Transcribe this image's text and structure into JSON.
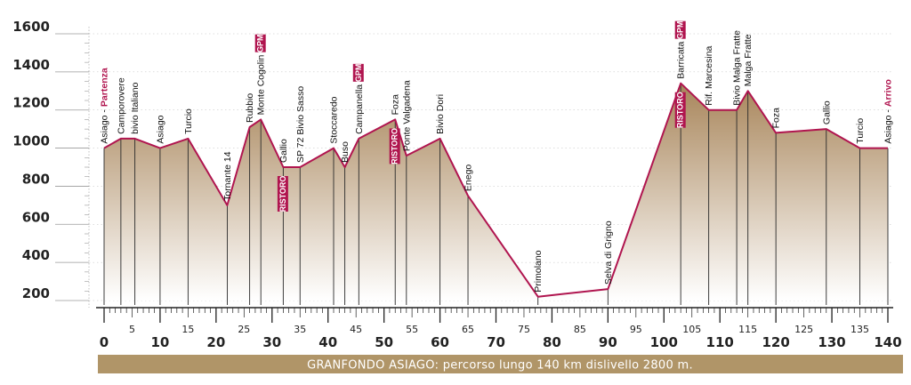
{
  "chart_data": {
    "type": "area",
    "title": "GRANFONDO ASIAGO: percorso lungo 140 km dislivello 2800 m.",
    "xlim": [
      0,
      140
    ],
    "ylim": [
      200,
      1600
    ],
    "x_ticks": [
      0,
      5,
      10,
      15,
      20,
      25,
      30,
      35,
      40,
      45,
      50,
      55,
      60,
      65,
      70,
      75,
      80,
      85,
      90,
      95,
      100,
      105,
      110,
      115,
      120,
      125,
      130,
      135,
      140
    ],
    "y_ticks": [
      200,
      400,
      600,
      800,
      1000,
      1200,
      1400,
      1600
    ],
    "profile": [
      {
        "x": 0,
        "y": 1000
      },
      {
        "x": 3,
        "y": 1050
      },
      {
        "x": 5.5,
        "y": 1050
      },
      {
        "x": 10,
        "y": 1000
      },
      {
        "x": 15,
        "y": 1050
      },
      {
        "x": 22,
        "y": 700
      },
      {
        "x": 26,
        "y": 1110
      },
      {
        "x": 28,
        "y": 1150
      },
      {
        "x": 32,
        "y": 900
      },
      {
        "x": 35,
        "y": 900
      },
      {
        "x": 41,
        "y": 1000
      },
      {
        "x": 43,
        "y": 900
      },
      {
        "x": 45.5,
        "y": 1050
      },
      {
        "x": 52,
        "y": 1150
      },
      {
        "x": 54,
        "y": 960
      },
      {
        "x": 60,
        "y": 1050
      },
      {
        "x": 65,
        "y": 750
      },
      {
        "x": 77.5,
        "y": 220
      },
      {
        "x": 90,
        "y": 260
      },
      {
        "x": 103,
        "y": 1340
      },
      {
        "x": 108,
        "y": 1200
      },
      {
        "x": 113,
        "y": 1200
      },
      {
        "x": 115,
        "y": 1300
      },
      {
        "x": 120,
        "y": 1080
      },
      {
        "x": 129,
        "y": 1100
      },
      {
        "x": 135,
        "y": 1000
      },
      {
        "x": 140,
        "y": 1000
      }
    ],
    "waypoints": [
      {
        "x": 0,
        "y": 1000,
        "label": "Asiago -",
        "red_suffix": "Partenza"
      },
      {
        "x": 3,
        "y": 1050,
        "label": "Camporovere"
      },
      {
        "x": 5.5,
        "y": 1050,
        "label": "bivio Italiano"
      },
      {
        "x": 10,
        "y": 1000,
        "label": "Asiago"
      },
      {
        "x": 15,
        "y": 1050,
        "label": "Turcio"
      },
      {
        "x": 22,
        "y": 700,
        "label": "Tornante 14"
      },
      {
        "x": 26,
        "y": 1110,
        "label": "Rubbio"
      },
      {
        "x": 28,
        "y": 1150,
        "label": "Monte Cogolin",
        "badge": "GPM"
      },
      {
        "x": 32,
        "y": 900,
        "label": "Gallio",
        "badge_below": "RISTORO"
      },
      {
        "x": 35,
        "y": 900,
        "label": "SP 72 Bivio Sasso"
      },
      {
        "x": 41,
        "y": 1000,
        "label": "Stoccaredo"
      },
      {
        "x": 43,
        "y": 900,
        "label": "Buso"
      },
      {
        "x": 45.5,
        "y": 1050,
        "label": "Campanella",
        "badge": "GPM"
      },
      {
        "x": 52,
        "y": 1150,
        "label": "Foza",
        "badge_below": "RISTORO"
      },
      {
        "x": 54,
        "y": 960,
        "label": "Ponte Valgadena"
      },
      {
        "x": 60,
        "y": 1050,
        "label": "Bivio Dori"
      },
      {
        "x": 65,
        "y": 750,
        "label": "Enego"
      },
      {
        "x": 77.5,
        "y": 220,
        "label": "Primolano"
      },
      {
        "x": 90,
        "y": 260,
        "label": "Selva di Grigno"
      },
      {
        "x": 103,
        "y": 1340,
        "label": "Barricata",
        "badge": "GPM",
        "badge_below": "RISTORO"
      },
      {
        "x": 108,
        "y": 1200,
        "label": "Rif. Marcesina"
      },
      {
        "x": 113,
        "y": 1200,
        "label": "Bivio Malga Fratte"
      },
      {
        "x": 115,
        "y": 1300,
        "label": "Malga Fratte"
      },
      {
        "x": 120,
        "y": 1080,
        "label": "Foza"
      },
      {
        "x": 129,
        "y": 1100,
        "label": "Gallio"
      },
      {
        "x": 135,
        "y": 1000,
        "label": "Turcio"
      },
      {
        "x": 140,
        "y": 1000,
        "label": "Asiago -",
        "red_suffix": "Arrivo"
      }
    ],
    "colors": {
      "line": "#b0154f",
      "fill_top": "#a8855a",
      "fill_bottom": "#ffffff",
      "badge": "#b0154f",
      "footer": "#b09568",
      "axis": "#222222"
    }
  }
}
